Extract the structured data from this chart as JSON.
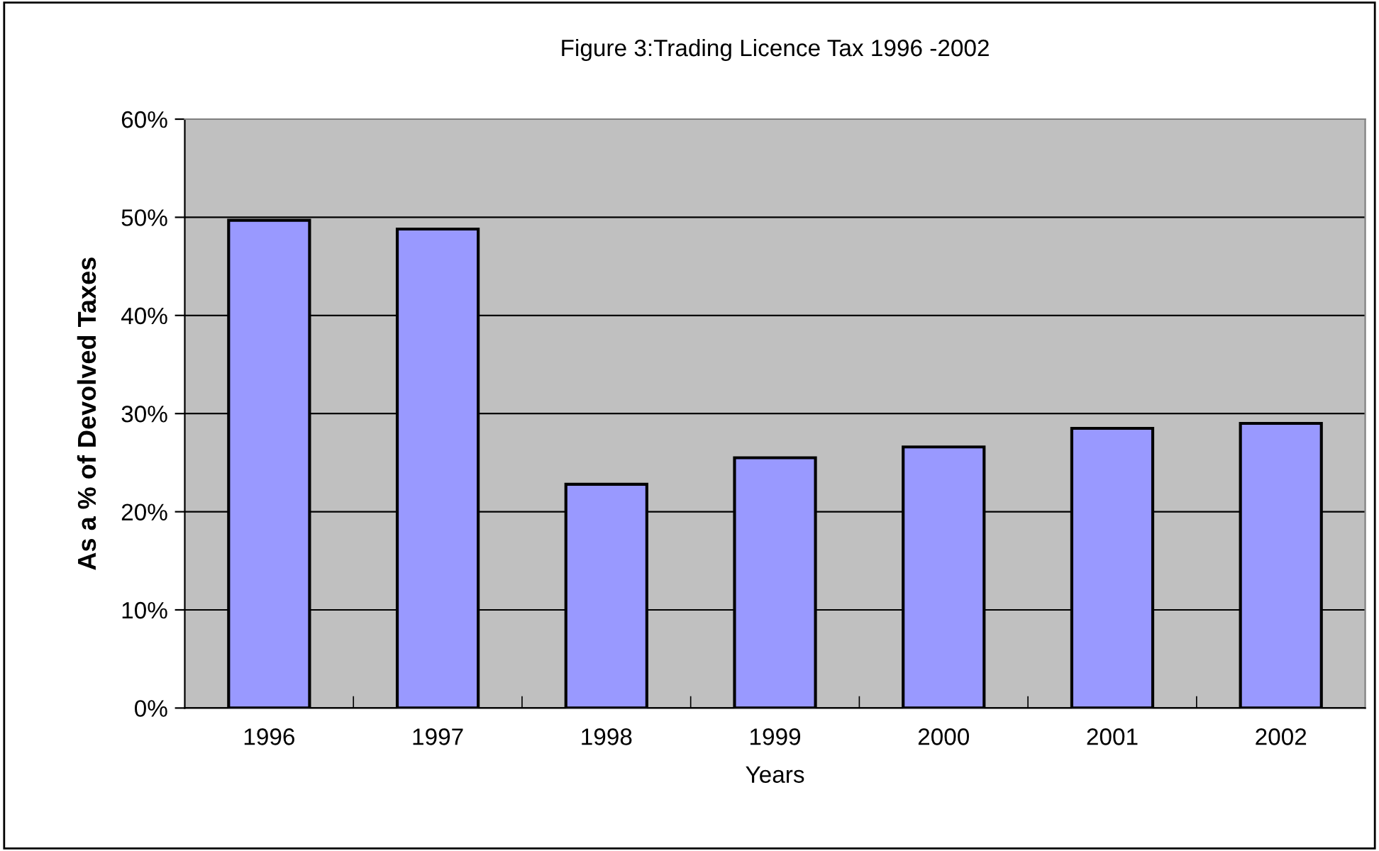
{
  "chart_data": {
    "type": "bar",
    "title": "Figure 3:Trading Licence Tax 1996 -2002",
    "xlabel": "Years",
    "ylabel": "As a % of Devolved Taxes",
    "categories": [
      "1996",
      "1997",
      "1998",
      "1999",
      "2000",
      "2001",
      "2002"
    ],
    "values": [
      49.7,
      48.8,
      22.8,
      25.5,
      26.6,
      28.5,
      29.0
    ],
    "color": "#9999ff",
    "ylim": [
      0,
      60
    ],
    "yticks": [
      {
        "value": 0,
        "label": "0%"
      },
      {
        "value": 10,
        "label": "10%"
      },
      {
        "value": 20,
        "label": "20%"
      },
      {
        "value": 30,
        "label": "30%"
      },
      {
        "value": 40,
        "label": "40%"
      },
      {
        "value": 50,
        "label": "50%"
      },
      {
        "value": 60,
        "label": "60%"
      }
    ],
    "grid": "y",
    "legend": false
  }
}
